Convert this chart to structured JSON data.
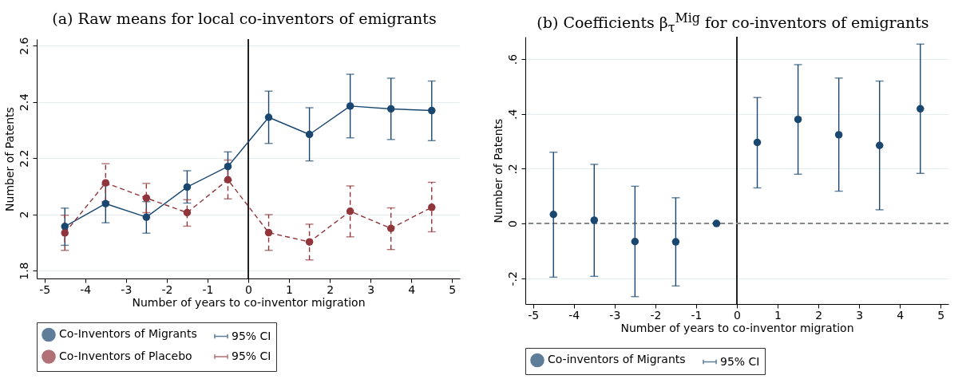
{
  "chart_data": [
    {
      "type": "line",
      "title": "(a) Raw means for local co-inventors of emigrants",
      "xlabel": "Number of years to co-inventor migration",
      "ylabel": "Number of Patents",
      "x": [
        -4.5,
        -3.5,
        -2.5,
        -1.5,
        -0.5,
        0.5,
        1.5,
        2.5,
        3.5,
        4.5
      ],
      "series": [
        {
          "name": "Co-Inventors of Migrants",
          "color": "#1a476f",
          "values": [
            1.957,
            2.038,
            1.99,
            2.097,
            2.17,
            2.345,
            2.284,
            2.385,
            2.375,
            2.369
          ],
          "errors": [
            [
              1.89,
              2.022
            ],
            [
              1.97,
              2.105
            ],
            [
              1.933,
              2.045
            ],
            [
              2.04,
              2.155
            ],
            [
              2.12,
              2.222
            ],
            [
              2.252,
              2.438
            ],
            [
              2.19,
              2.379
            ],
            [
              2.272,
              2.498
            ],
            [
              2.266,
              2.484
            ],
            [
              2.262,
              2.474
            ]
          ]
        },
        {
          "name": "Co-Inventors of Placebo",
          "color": "#90353b",
          "line_style": "dashed",
          "values": [
            1.934,
            2.112,
            2.058,
            2.006,
            2.123,
            1.935,
            1.902,
            2.011,
            1.95,
            2.025
          ],
          "errors": [
            [
              1.872,
              1.997
            ],
            [
              2.045,
              2.18
            ],
            [
              2.006,
              2.11
            ],
            [
              1.958,
              2.052
            ],
            [
              2.055,
              2.193
            ],
            [
              1.872,
              1.999
            ],
            [
              1.838,
              1.965
            ],
            [
              1.92,
              2.101
            ],
            [
              1.875,
              2.023
            ],
            [
              1.938,
              2.114
            ]
          ]
        }
      ],
      "annotations": [
        "95% CI",
        "95% CI"
      ],
      "marker": "circle",
      "grid": "y",
      "legend": "bottom",
      "xlim": [
        -5.19,
        5.19
      ],
      "xticks": [
        -5,
        -4,
        -3,
        -2,
        -1,
        0,
        1,
        2,
        3,
        4,
        5
      ],
      "ylim": [
        1.772,
        2.623
      ],
      "yticks": [
        1.8,
        2,
        2.2,
        2.4,
        2.6
      ],
      "ref_lines": [
        {
          "axis": "x",
          "value": 0,
          "color": "#222222"
        }
      ]
    },
    {
      "type": "scatter",
      "title": "(b) Coefficients β$_{τ}$$^{Mig}$ for co-inventors of emigrants",
      "xlabel": "Number of years to co-inventor migration",
      "ylabel": "Number of Patents",
      "x": [
        -4.5,
        -3.5,
        -2.5,
        -1.5,
        -0.5,
        0.5,
        1.5,
        2.5,
        3.5,
        4.5
      ],
      "series": [
        {
          "name": "Co-inventors of Migrants",
          "color": "#1a476f",
          "values": [
            0.033,
            0.012,
            -0.066,
            -0.067,
            0,
            0.296,
            0.38,
            0.324,
            0.285,
            0.419
          ],
          "errors": [
            [
              -0.196,
              0.26
            ],
            [
              -0.193,
              0.216
            ],
            [
              -0.267,
              0.136
            ],
            [
              -0.228,
              0.094
            ],
            null,
            [
              0.13,
              0.46
            ],
            [
              0.18,
              0.58
            ],
            [
              0.118,
              0.531
            ],
            [
              0.05,
              0.52
            ],
            [
              0.183,
              0.655
            ]
          ]
        }
      ],
      "annotations": [
        "95% CI"
      ],
      "marker": "circle",
      "grid": "y",
      "legend": "bottom",
      "xlim": [
        -5.19,
        5.19
      ],
      "xticks": [
        -5,
        -4,
        -3,
        -2,
        -1,
        0,
        1,
        2,
        3,
        4,
        5
      ],
      "ylim": [
        -0.294,
        0.682
      ],
      "yticks": [
        {
          "value": -0.2,
          "label": "-.2"
        },
        0,
        {
          "value": 0.2,
          "label": ".2"
        },
        {
          "value": 0.4,
          "label": ".4"
        },
        {
          "value": 0.6,
          "label": ".6"
        }
      ],
      "ref_lines": [
        {
          "axis": "x",
          "value": 0,
          "color": "#222222"
        },
        {
          "axis": "y",
          "value": 0,
          "color": "#888888",
          "line_style": "dashed"
        }
      ]
    }
  ]
}
